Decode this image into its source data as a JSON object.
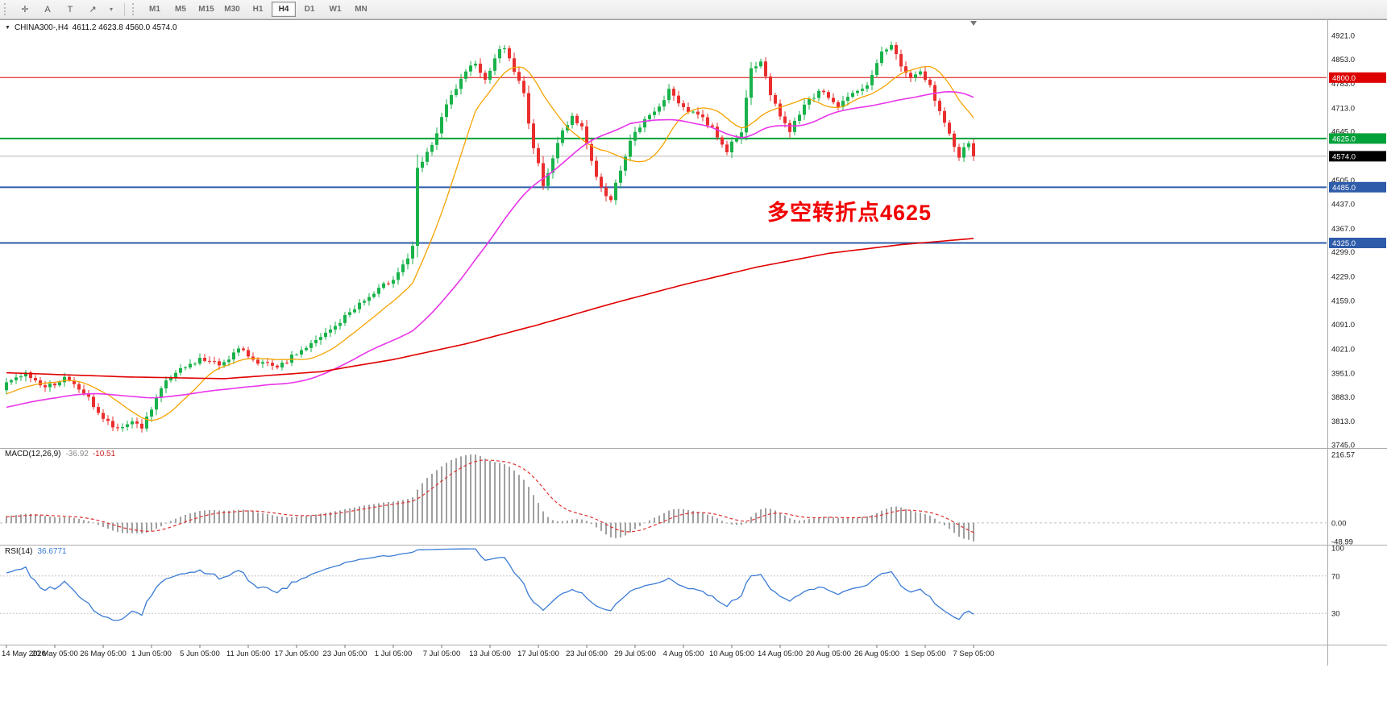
{
  "toolbar": {
    "tools": [
      {
        "name": "crosshair-icon",
        "glyph": "✛"
      },
      {
        "name": "text-label-icon",
        "glyph": "A"
      },
      {
        "name": "text-annotation-icon",
        "glyph": "T"
      },
      {
        "name": "arrow-line-icon",
        "glyph": "↗"
      },
      {
        "name": "tools-dropdown-caret-icon",
        "glyph": "▾"
      }
    ],
    "timeframes": [
      "M1",
      "M5",
      "M15",
      "M30",
      "H1",
      "H4",
      "D1",
      "W1",
      "MN"
    ],
    "active_timeframe": "H4"
  },
  "chart": {
    "title_symbol_period": "CHINA300-,H4",
    "title_ohlc": "4611.2 4623.8 4560.0 4574.0",
    "annotation_text": "多空转折点4625",
    "annotation_color": "#f20000"
  },
  "indicators": {
    "macd": {
      "name": "MACD(12,26,9)",
      "value_main": "-36.92",
      "value_signal": "-10.51"
    },
    "rsi": {
      "name": "RSI(14)",
      "value": "36.6771"
    }
  },
  "chart_data": {
    "type": "candlestick",
    "symbol": "CHINA300-",
    "period": "H4",
    "current_bar": {
      "open": 4611.2,
      "high": 4623.8,
      "low": 4560.0,
      "close": 4574.0
    },
    "candle_up_color": "#19b24b",
    "candle_down_color": "#ea2e2e",
    "price_axis": {
      "ticks": [
        4921,
        4853,
        4783,
        4713,
        4645,
        4505,
        4437,
        4367,
        4299,
        4229,
        4159,
        4091,
        4021,
        3951,
        3883,
        3813,
        3745
      ],
      "min": 3745,
      "max": 4921
    },
    "levels": [
      {
        "price": 4800.0,
        "label": "4800.0",
        "color": "#dd0000",
        "width": 1
      },
      {
        "price": 4625.0,
        "label": "4625.0",
        "color": "#00a13a",
        "width": 2
      },
      {
        "price": 4485.0,
        "label": "4485.0",
        "color": "#2e5caa",
        "width": 2
      },
      {
        "price": 4325.0,
        "label": "4325.0",
        "color": "#2e5caa",
        "width": 2
      }
    ],
    "current_price": {
      "value": 4574.0,
      "label": "4574.0",
      "line_color": "#b6b6b6",
      "badge_color": "#000000"
    },
    "time_axis_labels": [
      "14 May 2020",
      "20 May 05:00",
      "26 May 05:00",
      "1 Jun 05:00",
      "5 Jun 05:00",
      "11 Jun 05:00",
      "17 Jun 05:00",
      "23 Jun 05:00",
      "1 Jul 05:00",
      "7 Jul 05:00",
      "13 Jul 05:00",
      "17 Jul 05:00",
      "23 Jul 05:00",
      "29 Jul 05:00",
      "4 Aug 05:00",
      "10 Aug 05:00",
      "14 Aug 05:00",
      "20 Aug 05:00",
      "26 Aug 05:00",
      "1 Sep 05:00",
      "7 Sep 05:00"
    ],
    "prehistory_keyframes": [
      [
        0,
        4100
      ],
      [
        90,
        3758
      ],
      [
        149,
        3905
      ]
    ],
    "close_keyframes": [
      [
        0,
        3920
      ],
      [
        4,
        3948
      ],
      [
        8,
        3910
      ],
      [
        12,
        3935
      ],
      [
        16,
        3895
      ],
      [
        20,
        3820
      ],
      [
        23,
        3785
      ],
      [
        26,
        3815
      ],
      [
        28,
        3795
      ],
      [
        30,
        3845
      ],
      [
        33,
        3930
      ],
      [
        36,
        3958
      ],
      [
        40,
        3992
      ],
      [
        44,
        3975
      ],
      [
        48,
        4018
      ],
      [
        52,
        3985
      ],
      [
        56,
        3962
      ],
      [
        60,
        4008
      ],
      [
        64,
        4042
      ],
      [
        68,
        4085
      ],
      [
        72,
        4140
      ],
      [
        76,
        4178
      ],
      [
        80,
        4225
      ],
      [
        83,
        4282
      ],
      [
        84,
        4310
      ],
      [
        85,
        4535
      ],
      [
        87,
        4580
      ],
      [
        89,
        4640
      ],
      [
        91,
        4720
      ],
      [
        93,
        4770
      ],
      [
        95,
        4810
      ],
      [
        97,
        4848
      ],
      [
        99,
        4790
      ],
      [
        101,
        4862
      ],
      [
        103,
        4888
      ],
      [
        105,
        4820
      ],
      [
        107,
        4752
      ],
      [
        109,
        4598
      ],
      [
        111,
        4495
      ],
      [
        113,
        4570
      ],
      [
        115,
        4645
      ],
      [
        117,
        4690
      ],
      [
        119,
        4660
      ],
      [
        121,
        4560
      ],
      [
        123,
        4480
      ],
      [
        125,
        4445
      ],
      [
        127,
        4540
      ],
      [
        129,
        4615
      ],
      [
        131,
        4660
      ],
      [
        134,
        4705
      ],
      [
        137,
        4760
      ],
      [
        140,
        4715
      ],
      [
        143,
        4695
      ],
      [
        146,
        4655
      ],
      [
        149,
        4590
      ],
      [
        152,
        4650
      ],
      [
        154,
        4820
      ],
      [
        156,
        4845
      ],
      [
        158,
        4755
      ],
      [
        160,
        4695
      ],
      [
        162,
        4640
      ],
      [
        164,
        4700
      ],
      [
        166,
        4742
      ],
      [
        169,
        4762
      ],
      [
        172,
        4718
      ],
      [
        175,
        4750
      ],
      [
        178,
        4772
      ],
      [
        181,
        4872
      ],
      [
        183,
        4895
      ],
      [
        185,
        4835
      ],
      [
        187,
        4800
      ],
      [
        189,
        4815
      ],
      [
        191,
        4775
      ],
      [
        193,
        4700
      ],
      [
        195,
        4640
      ],
      [
        197,
        4565
      ],
      [
        198,
        4600
      ],
      [
        199,
        4611.2
      ],
      [
        200,
        4574.0
      ]
    ],
    "moving_averages": {
      "fast": {
        "color": "#f5a300",
        "period": 13
      },
      "medium": {
        "color": "#e935e9",
        "period": 45
      },
      "slow": {
        "color": "#e00000",
        "keyframes": [
          [
            0,
            3952
          ],
          [
            25,
            3940
          ],
          [
            45,
            3935
          ],
          [
            65,
            3955
          ],
          [
            80,
            3990
          ],
          [
            95,
            4035
          ],
          [
            110,
            4090
          ],
          [
            125,
            4150
          ],
          [
            140,
            4205
          ],
          [
            155,
            4255
          ],
          [
            170,
            4295
          ],
          [
            185,
            4320
          ],
          [
            200,
            4338
          ]
        ]
      }
    },
    "macd": {
      "fast": 12,
      "slow": 26,
      "signal_period": 9,
      "axis_labels": [
        "216.57",
        "0.00",
        "-48.99"
      ],
      "histogram_color": "#a0a0a0",
      "signal_color": "#e03131"
    },
    "rsi": {
      "period": 14,
      "levels": [
        70,
        30
      ],
      "axis_labels": [
        100,
        70,
        30
      ],
      "line_color": "#3a7bd5"
    }
  }
}
